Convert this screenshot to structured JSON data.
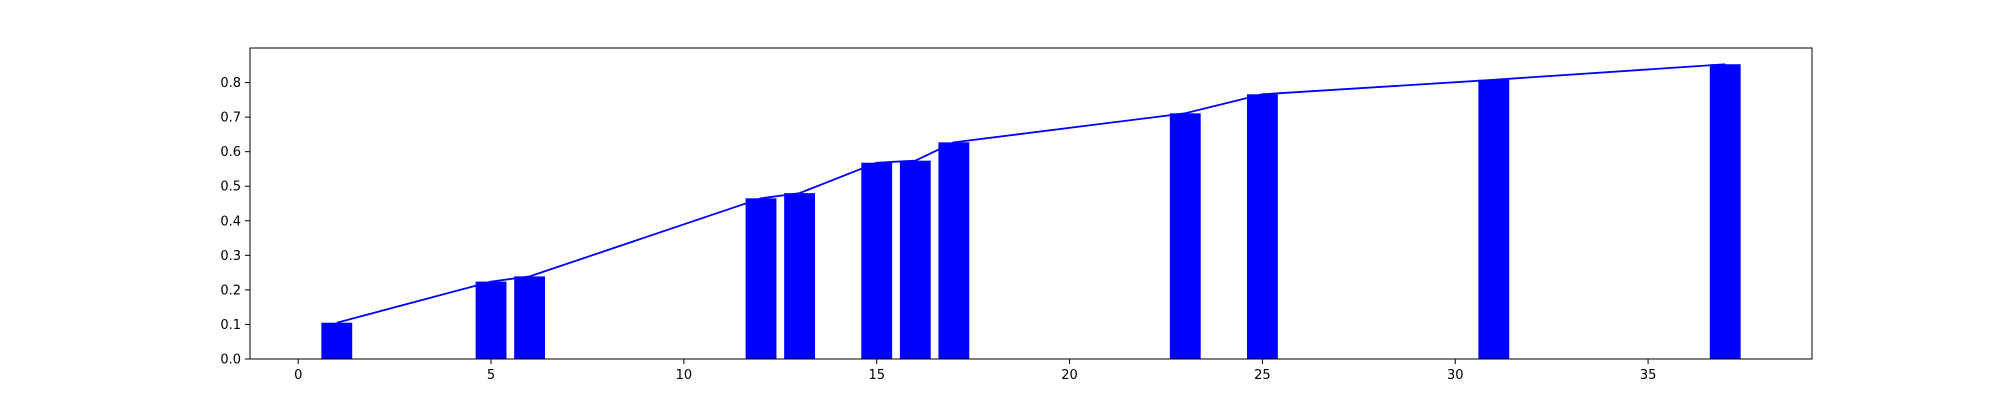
{
  "chart_data": {
    "type": "bar",
    "title": "",
    "xlabel": "",
    "ylabel": "",
    "xlim": [
      -1.25,
      39.25
    ],
    "ylim": [
      0,
      0.9
    ],
    "xticks": [
      0,
      5,
      10,
      15,
      20,
      25,
      30,
      35
    ],
    "yticks": [
      0.0,
      0.1,
      0.2,
      0.3,
      0.4,
      0.5,
      0.6,
      0.7,
      0.8
    ],
    "xtick_labels": [
      "0",
      "5",
      "10",
      "15",
      "20",
      "25",
      "30",
      "35"
    ],
    "ytick_labels": [
      "0.0",
      "0.1",
      "0.2",
      "0.3",
      "0.4",
      "0.5",
      "0.6",
      "0.7",
      "0.8"
    ],
    "grid": false,
    "bar_width": 0.8,
    "bars": {
      "x": [
        1,
        5,
        6,
        12,
        13,
        15,
        16,
        17,
        23,
        25,
        31,
        37
      ],
      "values": [
        0.105,
        0.224,
        0.239,
        0.465,
        0.48,
        0.568,
        0.574,
        0.627,
        0.711,
        0.766,
        0.808,
        0.853
      ],
      "color": "#0000ff"
    },
    "line": {
      "x": [
        1,
        5,
        6,
        12,
        13,
        15,
        16,
        17,
        23,
        25,
        31,
        37
      ],
      "values": [
        0.105,
        0.224,
        0.239,
        0.465,
        0.48,
        0.568,
        0.574,
        0.627,
        0.711,
        0.766,
        0.808,
        0.853
      ],
      "color": "#0000ff"
    }
  }
}
